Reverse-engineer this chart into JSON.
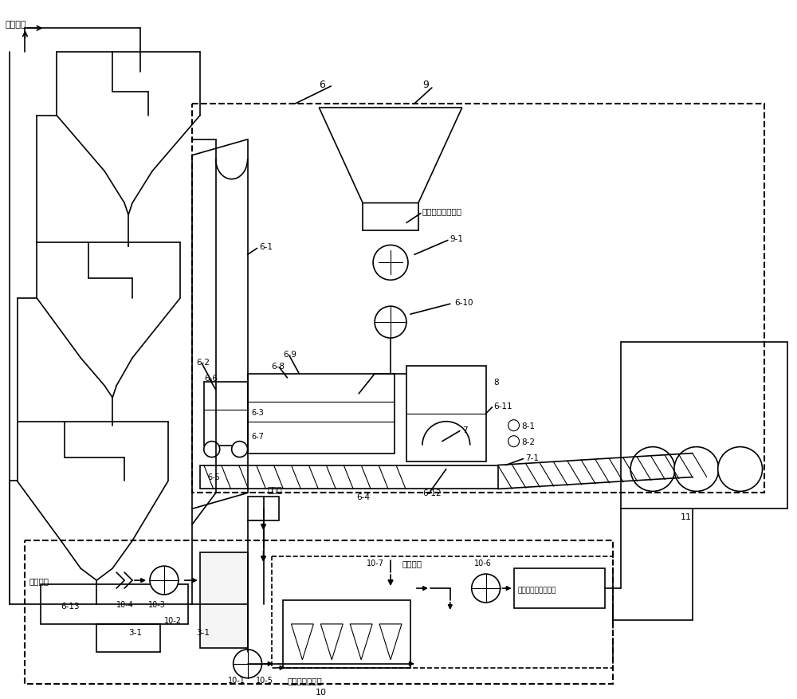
{
  "bg_color": "#ffffff",
  "line_color": "#000000",
  "labels": {
    "cement_raw": "水泥生料",
    "alt_fuel": "替代燃料和废弃物",
    "cool_air": "降温空气",
    "normal_air_left": "常温空气",
    "normal_air_right": "常温空气",
    "exhaust": "余热发电或废气处理",
    "cement_mix": "作为水泥混合材",
    "wind_point": "取风点",
    "num6": "6",
    "num9": "9",
    "num6_1": "6-1",
    "num6_2": "6-2",
    "num6_3": "6-3",
    "num6_4": "6-4",
    "num6_5": "6-5",
    "num6_6": "6-6",
    "num6_7": "6-7",
    "num6_8": "6-8",
    "num6_9": "6-9",
    "num6_10": "6-10",
    "num6_11": "6-11",
    "num6_12": "6-12",
    "num6_13": "6-13",
    "num3_1": "3-1",
    "num7": "7",
    "num7_1": "7-1",
    "num8": "8",
    "num8_1": "8-1",
    "num8_2": "8-2",
    "num9_1": "9-1",
    "num10": "10",
    "num10_1": "10-1",
    "num10_2": "10-2",
    "num10_3": "10-3",
    "num10_4": "10-4",
    "num10_5": "10-5",
    "num10_6": "10-6",
    "num10_7": "10-7",
    "num11": "11"
  }
}
